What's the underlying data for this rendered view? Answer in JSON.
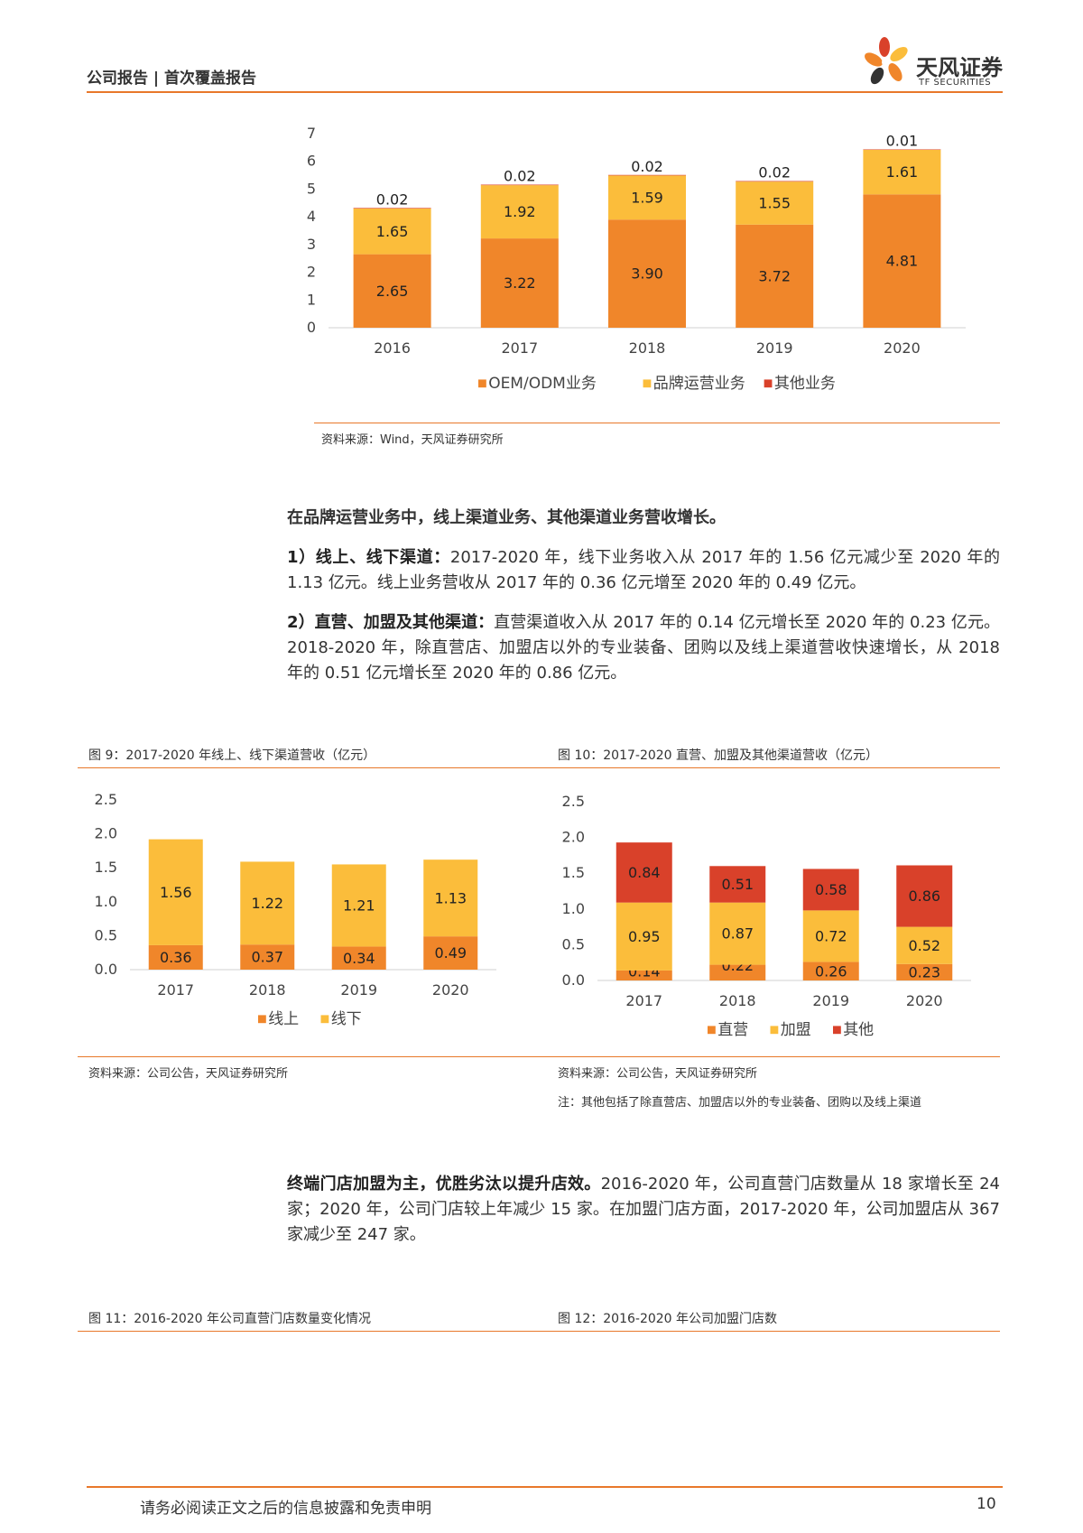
{
  "header": {
    "report_type": "公司报告 | 首次覆盖报告",
    "brand_name": "天风证券",
    "brand_sub": "TF SECURITIES"
  },
  "colors": {
    "accent": "#e8782a",
    "oem": "#f0862a",
    "brand": "#fbbd3b",
    "other": "#d9412a"
  },
  "figure_top": {
    "source": "资料来源：Wind，天风证券研究所"
  },
  "section1": {
    "heading": "在品牌运营业务中，线上渠道业务、其他渠道业务营收增长。",
    "p1_bold": "1）线上、线下渠道：",
    "p1_text": "2017-2020 年，线下业务收入从 2017 年的 1.56 亿元减少至 2020 年的 1.13 亿元。线上业务营收从 2017 年的 0.36 亿元增至 2020 年的 0.49 亿元。",
    "p2_bold": "2）直营、加盟及其他渠道：",
    "p2_text": "直营渠道收入从 2017 年的 0.14 亿元增长至 2020 年的 0.23 亿元。2018-2020 年，除直营店、加盟店以外的专业装备、团购以及线上渠道营收快速增长，从 2018 年的 0.51 亿元增长至 2020 年的 0.86 亿元。"
  },
  "fig9": {
    "caption": "图 9：2017-2020 年线上、线下渠道营收（亿元）",
    "source": "资料来源：公司公告，天风证券研究所"
  },
  "fig10": {
    "caption": "图 10：2017-2020 直营、加盟及其他渠道营收（亿元）",
    "source": "资料来源：公司公告，天风证券研究所",
    "note": "注：其他包括了除直营店、加盟店以外的专业装备、团购以及线上渠道"
  },
  "section2": {
    "p_bold": "终端门店加盟为主，优胜劣汰以提升店效。",
    "p_text": "2016-2020 年，公司直营门店数量从 18 家增长至 24 家；2020 年，公司门店较上年减少 15 家。在加盟门店方面，2017-2020 年，公司加盟店从 367 家减少至 247 家。"
  },
  "fig11": {
    "caption": "图 11：2016-2020 年公司直营门店数量变化情况"
  },
  "fig12": {
    "caption": "图 12：2016-2020 年公司加盟门店数"
  },
  "footer": {
    "disclaimer": "请务必阅读正文之后的信息披露和免责申明",
    "page": "10"
  },
  "chart_data": [
    {
      "id": "top",
      "type": "bar",
      "stacked": true,
      "categories": [
        "2016",
        "2017",
        "2018",
        "2019",
        "2020"
      ],
      "ylim": [
        0,
        7
      ],
      "yticks": [
        "0",
        "1",
        "2",
        "3",
        "4",
        "5",
        "6",
        "7"
      ],
      "series": [
        {
          "name": "OEM/ODM业务",
          "color": "#f0862a",
          "values": [
            2.65,
            3.22,
            3.9,
            3.72,
            4.81
          ],
          "labels": [
            "2.65",
            "3.22",
            "3.90",
            "3.72",
            "4.81"
          ]
        },
        {
          "name": "品牌运营业务",
          "color": "#fbbd3b",
          "values": [
            1.65,
            1.92,
            1.59,
            1.55,
            1.61
          ],
          "labels": [
            "1.65",
            "1.92",
            "1.59",
            "1.55",
            "1.61"
          ]
        },
        {
          "name": "其他业务",
          "color": "#d9412a",
          "values": [
            0.02,
            0.02,
            0.02,
            0.02,
            0.01
          ],
          "labels": [
            "0.02",
            "0.02",
            "0.02",
            "0.02",
            "0.01"
          ]
        }
      ],
      "legend": "bottom"
    },
    {
      "id": "fig9",
      "type": "bar",
      "stacked": true,
      "categories": [
        "2017",
        "2018",
        "2019",
        "2020"
      ],
      "ylim": [
        0,
        2.5
      ],
      "yticks": [
        "0.0",
        "0.5",
        "1.0",
        "1.5",
        "2.0",
        "2.5"
      ],
      "series": [
        {
          "name": "线上",
          "color": "#f0862a",
          "values": [
            0.36,
            0.37,
            0.34,
            0.49
          ],
          "labels": [
            "0.36",
            "0.37",
            "0.34",
            "0.49"
          ]
        },
        {
          "name": "线下",
          "color": "#fbbd3b",
          "values": [
            1.56,
            1.22,
            1.21,
            1.13
          ],
          "labels": [
            "1.56",
            "1.22",
            "1.21",
            "1.13"
          ]
        }
      ],
      "legend": "bottom"
    },
    {
      "id": "fig10",
      "type": "bar",
      "stacked": true,
      "categories": [
        "2017",
        "2018",
        "2019",
        "2020"
      ],
      "ylim": [
        0,
        2.5
      ],
      "yticks": [
        "0.0",
        "0.5",
        "1.0",
        "1.5",
        "2.0",
        "2.5"
      ],
      "series": [
        {
          "name": "直营",
          "color": "#f0862a",
          "values": [
            0.14,
            0.22,
            0.26,
            0.23
          ],
          "labels": [
            "0.14",
            "0.22",
            "0.26",
            "0.23"
          ]
        },
        {
          "name": "加盟",
          "color": "#fbbd3b",
          "values": [
            0.95,
            0.87,
            0.72,
            0.52
          ],
          "labels": [
            "0.95",
            "0.87",
            "0.72",
            "0.52"
          ]
        },
        {
          "name": "其他",
          "color": "#d9412a",
          "values": [
            0.84,
            0.51,
            0.58,
            0.86
          ],
          "labels": [
            "0.84",
            "0.51",
            "0.58",
            "0.86"
          ]
        }
      ],
      "legend": "bottom"
    }
  ]
}
